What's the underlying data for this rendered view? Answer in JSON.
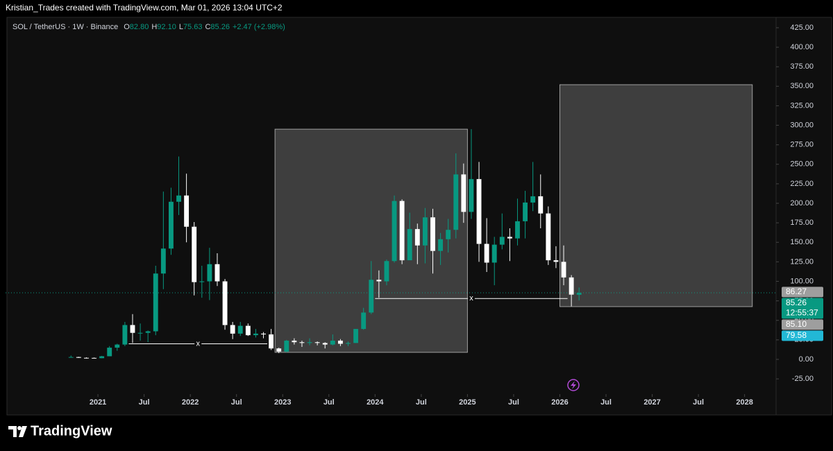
{
  "header": "Kristian_Trades created with TradingView.com, Mar 01, 2026 13:04 UTC+2",
  "brand": "TradingView",
  "chart_data": {
    "type": "candlestick",
    "title": "SOL / TetherUS · 1W · Binance",
    "ohlc_legend": [
      {
        "key": "O",
        "value": "82.80"
      },
      {
        "key": "H",
        "value": "92.10"
      },
      {
        "key": "L",
        "value": "75.63"
      },
      {
        "key": "C",
        "value": "85.26"
      }
    ],
    "change": "+2.47 (+2.98%)",
    "up_color": "#089981",
    "down_color": "#ffffff",
    "x": [
      "2020-09",
      "2020-10",
      "2020-11",
      "2020-12",
      "2021-01",
      "2021-02",
      "2021-03",
      "2021-04",
      "2021-05",
      "2021-06",
      "2021-07",
      "2021-08",
      "2021-09",
      "2021-10",
      "2021-11",
      "2021-12",
      "2022-01",
      "2022-02",
      "2022-03",
      "2022-04",
      "2022-05",
      "2022-06",
      "2022-07",
      "2022-08",
      "2022-09",
      "2022-10",
      "2022-11",
      "2022-12",
      "2023-01",
      "2023-02",
      "2023-03",
      "2023-04",
      "2023-05",
      "2023-06",
      "2023-07",
      "2023-08",
      "2023-09",
      "2023-10",
      "2023-11",
      "2023-12",
      "2024-01",
      "2024-02",
      "2024-03",
      "2024-04",
      "2024-05",
      "2024-06",
      "2024-07",
      "2024-08",
      "2024-09",
      "2024-10",
      "2024-11",
      "2024-12",
      "2025-01",
      "2025-02",
      "2025-03",
      "2025-04",
      "2025-05",
      "2025-06",
      "2025-07",
      "2025-08",
      "2025-09",
      "2025-10",
      "2025-11",
      "2025-12",
      "2026-01",
      "2026-02",
      "2026-03"
    ],
    "open": [
      2.9,
      3.0,
      2.0,
      1.9,
      1.5,
      4.0,
      15,
      19,
      44,
      34,
      34,
      36,
      110,
      142,
      202,
      210,
      170,
      99,
      100,
      122,
      100,
      44,
      33,
      43,
      31,
      33,
      32,
      14,
      10,
      24,
      22,
      21,
      22,
      21,
      19,
      24,
      20,
      21,
      39,
      60,
      102,
      100,
      126,
      203,
      127,
      167,
      146,
      182,
      139,
      154,
      166,
      237,
      189,
      231,
      148,
      124,
      147,
      157,
      155,
      177,
      201,
      209,
      187,
      127,
      125,
      105,
      82.8
    ],
    "high": [
      4.9,
      3.3,
      2.6,
      2.4,
      4.5,
      17,
      20,
      48,
      58,
      46,
      37,
      120,
      215,
      220,
      260,
      238,
      176,
      120,
      143,
      136,
      103,
      48,
      48,
      46,
      39,
      35,
      39,
      15,
      25,
      27,
      24,
      27,
      23,
      22,
      32,
      26,
      23,
      39,
      66,
      126,
      114,
      128,
      210,
      205,
      188,
      174,
      194,
      193,
      162,
      180,
      264,
      251,
      295,
      253,
      181,
      157,
      187,
      168,
      206,
      216,
      253,
      237,
      196,
      145,
      146,
      108,
      92.1
    ],
    "low": [
      2.5,
      1.9,
      1.2,
      1.5,
      1.5,
      4,
      11,
      17,
      21,
      24,
      22,
      31,
      90,
      134,
      185,
      150,
      82,
      79,
      76,
      94,
      38,
      26,
      30,
      30,
      28,
      27,
      12,
      8,
      9,
      19,
      16,
      18,
      18,
      14,
      18,
      17,
      17,
      21,
      38,
      58,
      79,
      95,
      124,
      122,
      128,
      122,
      123,
      110,
      121,
      137,
      155,
      175,
      180,
      125,
      112,
      95,
      141,
      126,
      146,
      155,
      190,
      168,
      121,
      117,
      95,
      68,
      75.63
    ],
    "close": [
      3.0,
      2.0,
      1.9,
      1.5,
      4.0,
      15,
      19,
      44,
      34,
      34,
      36,
      110,
      142,
      202,
      210,
      170,
      99,
      100,
      122,
      100,
      44,
      33,
      43,
      31,
      33,
      32,
      14,
      10,
      24,
      22,
      21,
      22,
      21,
      19,
      24,
      20,
      21,
      39,
      60,
      102,
      100,
      126,
      203,
      127,
      167,
      146,
      182,
      139,
      154,
      166,
      237,
      189,
      231,
      148,
      124,
      147,
      157,
      155,
      177,
      201,
      209,
      187,
      127,
      125,
      105,
      83,
      85.26
    ],
    "xlim": [
      "2020-01",
      "2028-05"
    ],
    "xticks": [
      {
        "value": "2021-01",
        "label": "2021"
      },
      {
        "value": "2021-07",
        "label": "Jul"
      },
      {
        "value": "2022-01",
        "label": "2022"
      },
      {
        "value": "2022-07",
        "label": "Jul"
      },
      {
        "value": "2023-01",
        "label": "2023"
      },
      {
        "value": "2023-07",
        "label": "Jul"
      },
      {
        "value": "2024-01",
        "label": "2024"
      },
      {
        "value": "2024-07",
        "label": "Jul"
      },
      {
        "value": "2025-01",
        "label": "2025"
      },
      {
        "value": "2025-07",
        "label": "Jul"
      },
      {
        "value": "2026-01",
        "label": "2026"
      },
      {
        "value": "2026-07",
        "label": "Jul"
      },
      {
        "value": "2027-01",
        "label": "2027"
      },
      {
        "value": "2027-07",
        "label": "Jul"
      },
      {
        "value": "2028-01",
        "label": "2028"
      }
    ],
    "ylim": [
      -44.5,
      438.3
    ],
    "yticks": [
      {
        "value": -25,
        "label": "-25.00"
      },
      {
        "value": 0,
        "label": "0.00"
      },
      {
        "value": 25,
        "label": "25.00"
      },
      {
        "value": 50,
        "label": "50.00"
      },
      {
        "value": 75,
        "label": "75.00"
      },
      {
        "value": 100,
        "label": "100.00"
      },
      {
        "value": 125,
        "label": "125.00"
      },
      {
        "value": 150,
        "label": "150.00"
      },
      {
        "value": 175,
        "label": "175.00"
      },
      {
        "value": 200,
        "label": "200.00"
      },
      {
        "value": 225,
        "label": "225.00"
      },
      {
        "value": 250,
        "label": "250.00"
      },
      {
        "value": 275,
        "label": "275.00"
      },
      {
        "value": 300,
        "label": "300.00"
      },
      {
        "value": 325,
        "label": "325.00"
      },
      {
        "value": 350,
        "label": "350.00"
      },
      {
        "value": 375,
        "label": "375.00"
      },
      {
        "value": 400,
        "label": "400.00"
      },
      {
        "value": 425,
        "label": "425.00"
      }
    ],
    "boxes": [
      {
        "x": [
          "2022-12",
          "2025-01"
        ],
        "y": [
          9,
          295
        ]
      },
      {
        "x": [
          "2026-01",
          "2028-02"
        ],
        "y": [
          67.6,
          352
        ]
      }
    ],
    "lines": [
      {
        "x": [
          "2021-05",
          "2022-11"
        ],
        "y": 20,
        "label": "x"
      },
      {
        "x": [
          "2024-01",
          "2026-02"
        ],
        "y": 78,
        "label": "x"
      }
    ],
    "price_labels": [
      {
        "value": 86.27,
        "label": "86.27",
        "color": "#9e9e9e"
      },
      {
        "value": 85.26,
        "label": "85.26",
        "sub": "12:55:37",
        "color": "#089981"
      },
      {
        "value": 85.1,
        "label": "85.10",
        "color": "#9e9e9e"
      },
      {
        "value": 79.58,
        "label": "79.58",
        "color": "#22b8d6"
      }
    ]
  }
}
